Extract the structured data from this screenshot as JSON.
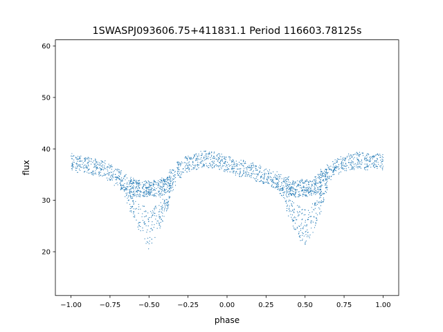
{
  "chart_data": {
    "type": "scatter",
    "title": "1SWASPJ093606.75+411831.1 Period 116603.78125s",
    "xlabel": "phase",
    "ylabel": "flux",
    "xlim": [
      -1.1,
      1.1
    ],
    "ylim": [
      11.5,
      61.2
    ],
    "x_ticks": [
      -1.0,
      -0.75,
      -0.5,
      -0.25,
      0.0,
      0.25,
      0.5,
      0.75,
      1.0
    ],
    "x_tick_labels": [
      "−1.00",
      "−0.75",
      "−0.50",
      "−0.25",
      "0.00",
      "0.25",
      "0.50",
      "0.75",
      "1.00"
    ],
    "y_ticks": [
      20,
      30,
      40,
      50,
      60
    ],
    "y_tick_labels": [
      "20",
      "30",
      "40",
      "50",
      "60"
    ],
    "grid": false,
    "legend": "none",
    "color": "#1f77b4",
    "series": [
      {
        "description_points_sampled": true,
        "x": [
          -1.0,
          -0.95,
          -0.9,
          -0.85,
          -0.8,
          -0.75,
          -0.7,
          -0.66,
          -0.62,
          -0.6,
          -0.58,
          -0.55,
          -0.52,
          -0.5,
          -0.48,
          -0.45,
          -0.42,
          -0.4,
          -0.38,
          -0.35,
          -0.3,
          -0.25,
          -0.2,
          -0.15,
          -0.1,
          -0.05,
          0.0,
          0.05,
          0.1,
          0.15,
          0.2,
          0.25,
          0.3,
          0.34,
          0.38,
          0.4,
          0.42,
          0.45,
          0.48,
          0.5,
          0.52,
          0.55,
          0.58,
          0.6,
          0.62,
          0.65,
          0.7,
          0.75,
          0.8,
          0.85,
          0.9,
          0.95,
          1.0
        ],
        "y": [
          37.5,
          37.0,
          36.8,
          36.5,
          36.2,
          35.5,
          34.5,
          33.5,
          33.0,
          32.5,
          32.3,
          32.2,
          32.3,
          32.5,
          32.3,
          32.2,
          32.5,
          33.0,
          33.5,
          34.5,
          36.0,
          37.0,
          37.5,
          38.0,
          37.8,
          37.5,
          37.0,
          36.5,
          36.2,
          35.8,
          35.2,
          34.5,
          34.0,
          33.5,
          33.0,
          32.5,
          32.3,
          32.2,
          32.3,
          32.5,
          32.3,
          32.5,
          33.0,
          33.5,
          34.5,
          35.5,
          36.5,
          37.0,
          37.5,
          37.8,
          37.5,
          37.5,
          37.5
        ]
      }
    ]
  }
}
